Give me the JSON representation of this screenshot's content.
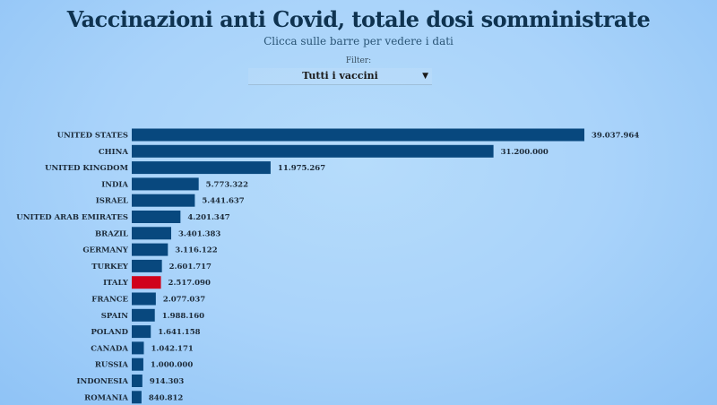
{
  "title": "Vaccinazioni anti Covid, totale dosi somministrate",
  "subtitle": "Clicca sulle barre per vedere i dati",
  "filter": {
    "label": "Filter:",
    "selected": "Tutti i vaccini",
    "icon": "caret-down-icon"
  },
  "chart_data": {
    "type": "bar",
    "orientation": "horizontal",
    "categories": [
      "UNITED STATES",
      "CHINA",
      "UNITED KINGDOM",
      "INDIA",
      "ISRAEL",
      "UNITED ARAB EMIRATES",
      "BRAZIL",
      "GERMANY",
      "TURKEY",
      "ITALY",
      "FRANCE",
      "SPAIN",
      "POLAND",
      "CANADA",
      "RUSSIA",
      "INDONESIA",
      "ROMANIA"
    ],
    "values": [
      39037964,
      31200000,
      11975267,
      5773322,
      5441637,
      4201347,
      3401383,
      3116122,
      2601717,
      2517090,
      2077037,
      1988160,
      1641158,
      1042171,
      1000000,
      914303,
      840812
    ],
    "labels": [
      "39.037.964",
      "31.200.000",
      "11.975.267",
      "5.773.322",
      "5.441.637",
      "4.201.347",
      "3.401.383",
      "3.116.122",
      "2.601.717",
      "2.517.090",
      "2.077.037",
      "1.988.160",
      "1.641.158",
      "1.042.171",
      "1.000.000",
      "914.303",
      "840.812"
    ],
    "colors": {
      "default": "#08487e",
      "highlight": "#d0021b"
    },
    "highlight": "ITALY",
    "grid": false
  }
}
